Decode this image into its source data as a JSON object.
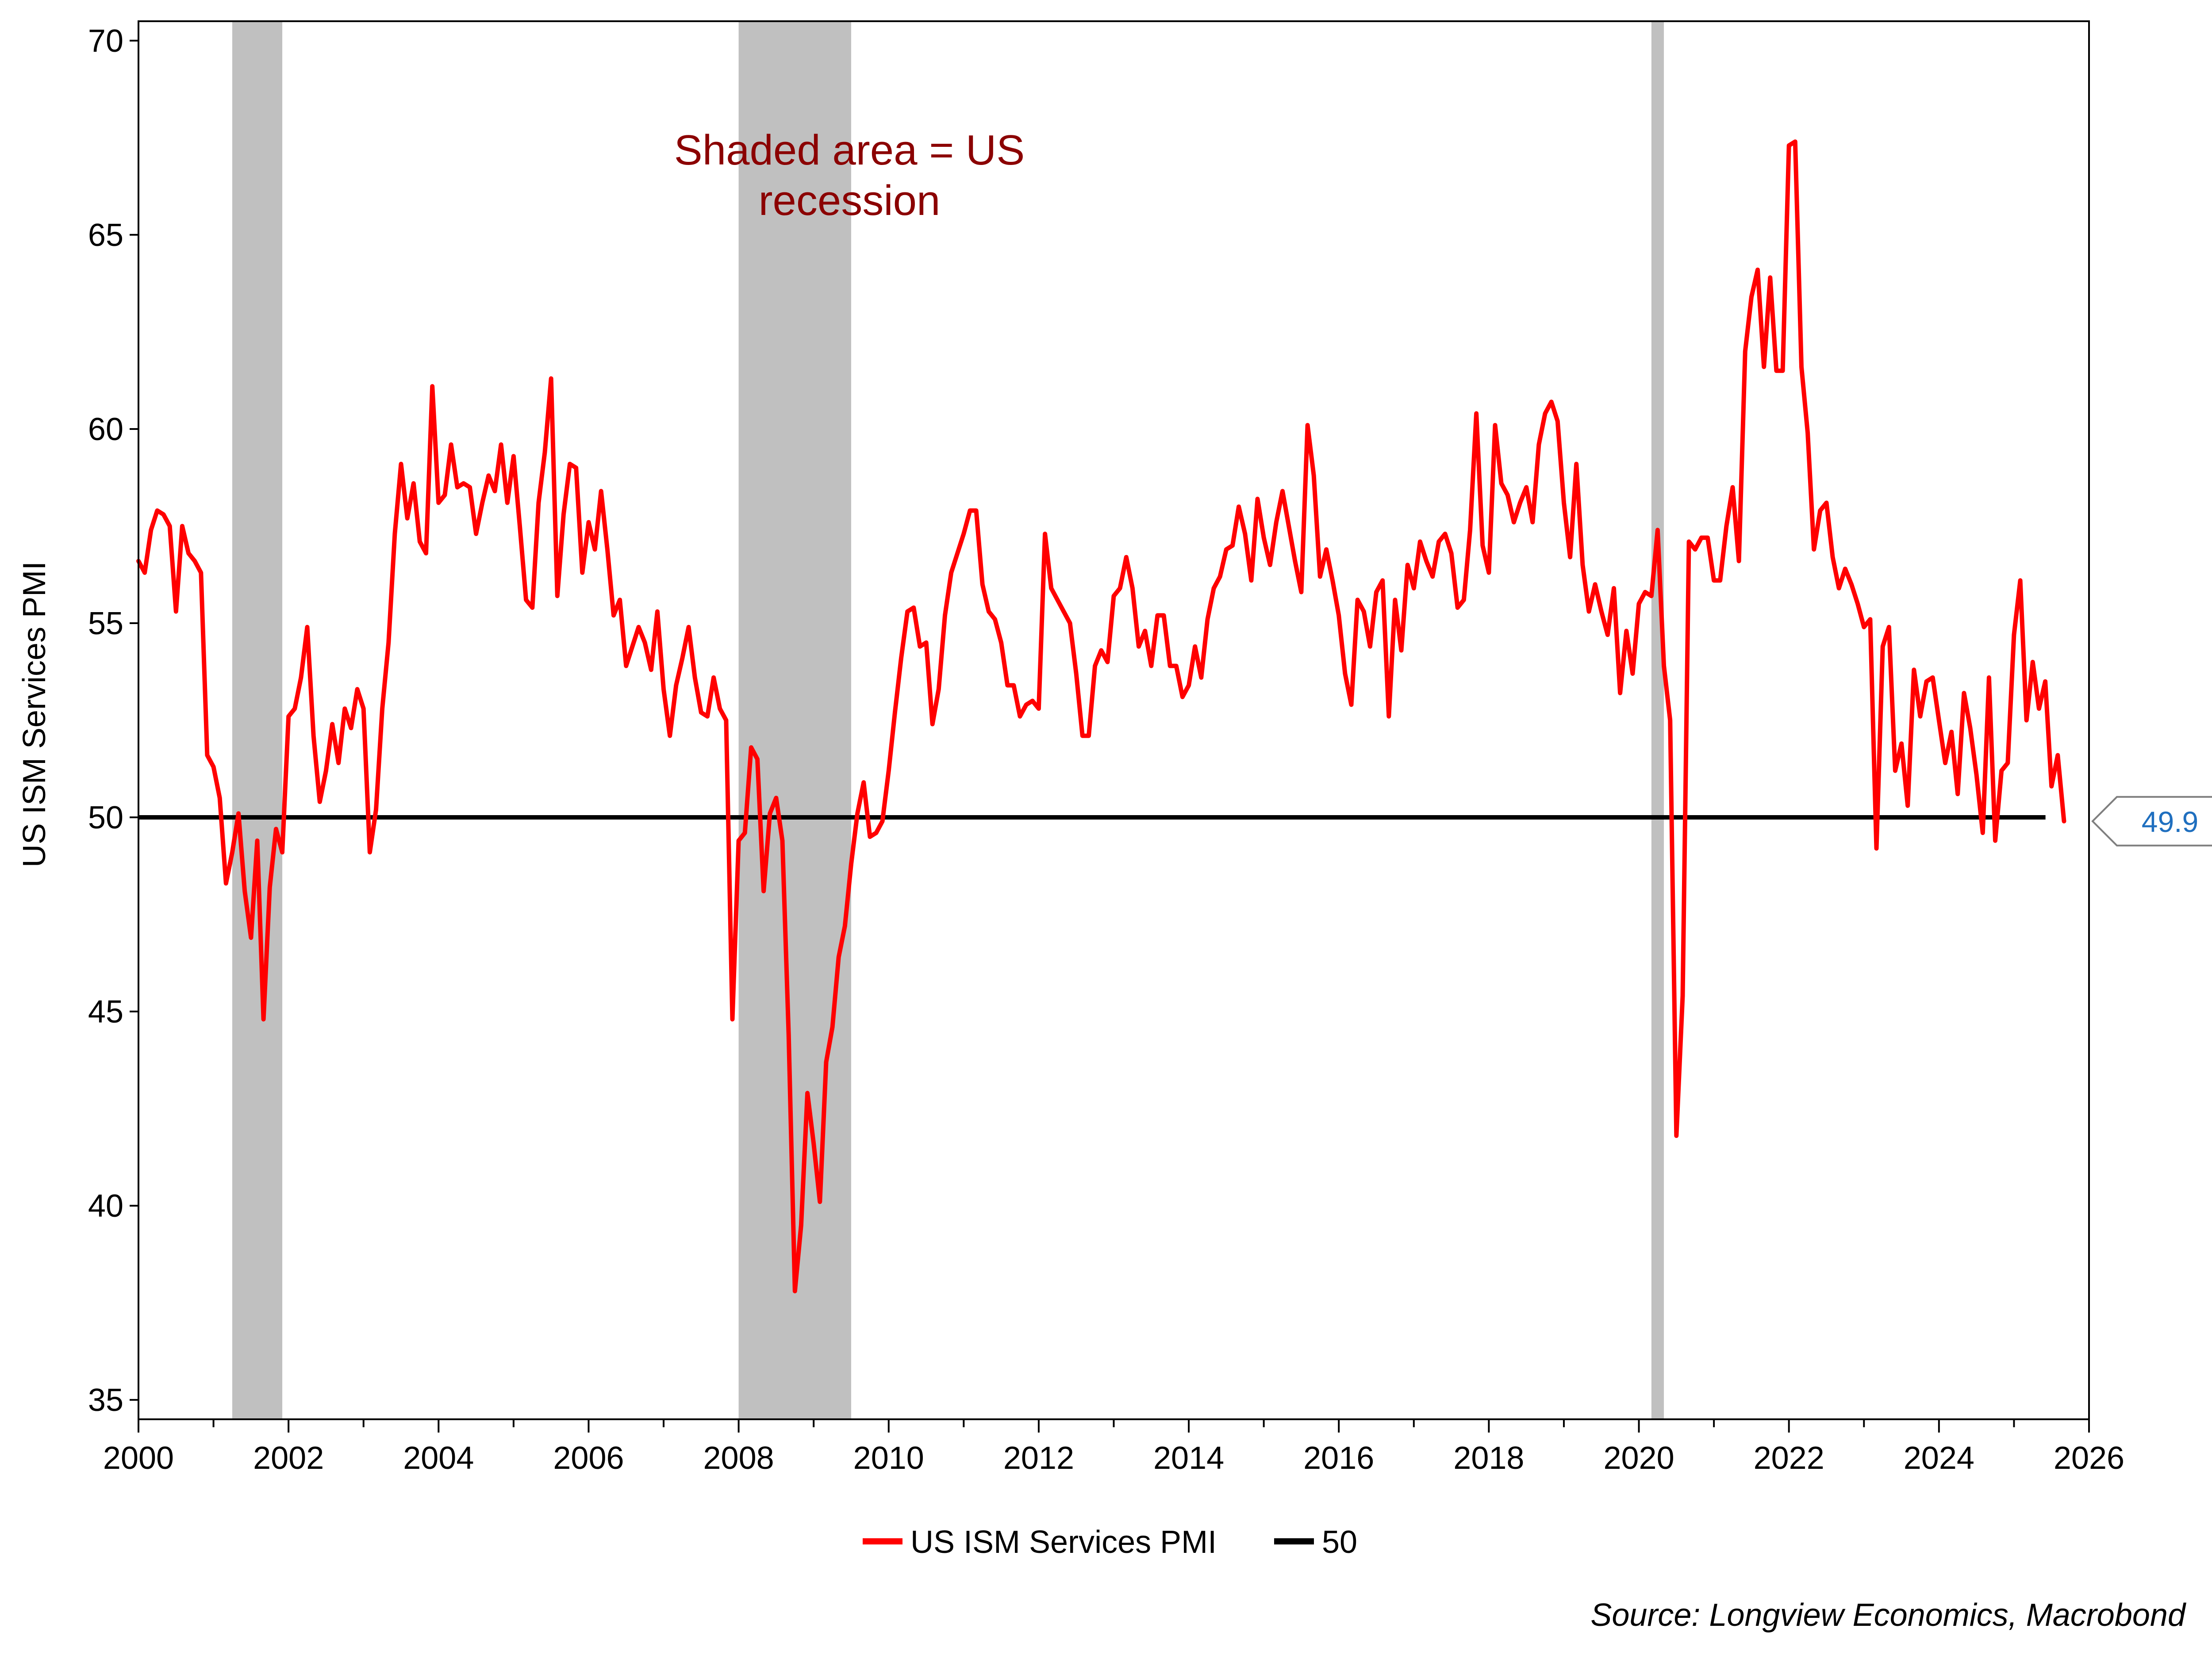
{
  "chart_data": {
    "type": "line",
    "title": "",
    "xlabel": "",
    "ylabel": "US ISM Services PMI",
    "xlim": [
      2000,
      2026
    ],
    "ylim": [
      34.5,
      70.5
    ],
    "x_ticks": [
      "2000",
      "2002",
      "2004",
      "2006",
      "2008",
      "2010",
      "2012",
      "2014",
      "2016",
      "2018",
      "2020",
      "2022",
      "2024",
      "2026"
    ],
    "y_ticks": [
      "35",
      "40",
      "45",
      "50",
      "55",
      "60",
      "65",
      "70"
    ],
    "grid": false,
    "legend_position": "bottom-center",
    "colors": {
      "series": "#ff0000",
      "reference": "#000000",
      "recession": "#c0c0c0",
      "annotation": "#8b0000",
      "last_value": "#1f6fbf"
    },
    "series": [
      {
        "name": "US ISM Services PMI",
        "x_start": "2000-01",
        "frequency": "monthly",
        "values": [
          56.6,
          56.3,
          57.4,
          57.9,
          57.8,
          57.5,
          55.3,
          57.5,
          56.8,
          56.6,
          56.3,
          51.6,
          51.3,
          50.5,
          48.3,
          49.1,
          50.1,
          48.1,
          46.9,
          49.4,
          44.8,
          48.2,
          49.7,
          49.1,
          52.6,
          52.8,
          53.6,
          54.9,
          52.1,
          50.4,
          51.2,
          52.4,
          51.4,
          52.8,
          52.3,
          53.3,
          52.8,
          49.1,
          50.2,
          52.8,
          54.5,
          57.3,
          59.1,
          57.7,
          58.6,
          57.1,
          56.8,
          61.1,
          58.1,
          58.3,
          59.6,
          58.5,
          58.6,
          58.5,
          57.3,
          58.1,
          58.8,
          58.4,
          59.6,
          58.1,
          59.3,
          57.5,
          55.6,
          55.4,
          58.1,
          59.4,
          61.3,
          55.7,
          57.8,
          59.1,
          59.0,
          56.3,
          57.6,
          56.9,
          58.4,
          56.9,
          55.2,
          55.6,
          53.9,
          54.4,
          54.9,
          54.5,
          53.8,
          55.3,
          53.3,
          52.1,
          53.4,
          54.1,
          54.9,
          53.6,
          52.7,
          52.6,
          53.6,
          52.8,
          52.5,
          44.8,
          49.4,
          49.6,
          51.8,
          51.5,
          48.1,
          50.1,
          50.5,
          49.4,
          44.4,
          37.8,
          39.5,
          42.9,
          41.6,
          40.1,
          43.7,
          44.6,
          46.4,
          47.2,
          48.8,
          50.1,
          50.9,
          49.5,
          49.6,
          49.9,
          51.2,
          52.7,
          54.1,
          55.3,
          55.4,
          54.4,
          54.5,
          52.4,
          53.3,
          55.2,
          56.3,
          56.8,
          57.3,
          57.9,
          57.9,
          56.0,
          55.3,
          55.1,
          54.5,
          53.4,
          53.4,
          52.6,
          52.9,
          53.0,
          52.8,
          57.3,
          55.9,
          55.6,
          55.3,
          55.0,
          53.7,
          52.1,
          52.1,
          53.9,
          54.3,
          54.0,
          55.7,
          55.9,
          56.7,
          55.9,
          54.4,
          54.8,
          53.9,
          55.2,
          55.2,
          53.9,
          53.9,
          53.1,
          53.4,
          54.4,
          53.6,
          55.1,
          55.9,
          56.2,
          56.9,
          57.0,
          58.0,
          57.3,
          56.1,
          58.2,
          57.2,
          56.5,
          57.6,
          58.4,
          57.5,
          56.6,
          55.8,
          60.1,
          58.8,
          56.2,
          56.9,
          56.1,
          55.2,
          53.7,
          52.9,
          55.6,
          55.3,
          54.4,
          55.8,
          56.1,
          52.6,
          55.6,
          54.3,
          56.5,
          55.9,
          57.1,
          56.6,
          56.2,
          57.1,
          57.3,
          56.8,
          55.4,
          55.6,
          57.4,
          60.4,
          57.0,
          56.3,
          60.1,
          58.6,
          58.3,
          57.6,
          58.1,
          58.5,
          57.6,
          59.6,
          60.4,
          60.7,
          60.2,
          58.1,
          56.7,
          59.1,
          56.5,
          55.3,
          56.0,
          55.3,
          54.7,
          55.9,
          53.2,
          54.8,
          53.7,
          55.5,
          55.8,
          55.7,
          57.4,
          53.9,
          52.5,
          41.8,
          45.4,
          57.1,
          56.9,
          57.2,
          57.2,
          56.1,
          56.1,
          57.5,
          58.5,
          56.6,
          62.0,
          63.4,
          64.1,
          61.6,
          63.9,
          61.5,
          61.5,
          67.3,
          67.4,
          61.6,
          59.9,
          56.9,
          57.9,
          58.1,
          56.7,
          55.9,
          56.4,
          56.0,
          55.5,
          54.9,
          55.1,
          49.2,
          54.4,
          54.9,
          51.2,
          51.9,
          50.3,
          53.8,
          52.6,
          53.5,
          53.6,
          52.5,
          51.4,
          52.2,
          50.6,
          53.2,
          52.3,
          51.1,
          49.6,
          53.6,
          49.4,
          51.2,
          51.4,
          54.7,
          56.1,
          52.5,
          54.0,
          52.8,
          53.5,
          50.8,
          51.6,
          49.9
        ]
      },
      {
        "name": "50",
        "value": 50
      }
    ],
    "recessions": [
      {
        "start": 2001.25,
        "end": 2001.917
      },
      {
        "start": 2008.0,
        "end": 2009.5
      },
      {
        "start": 2020.167,
        "end": 2020.333
      }
    ],
    "annotation": [
      "Shaded area = US",
      "recession"
    ],
    "last_value_label": "49.9",
    "source": "Source: Longview Economics, Macrobond"
  }
}
